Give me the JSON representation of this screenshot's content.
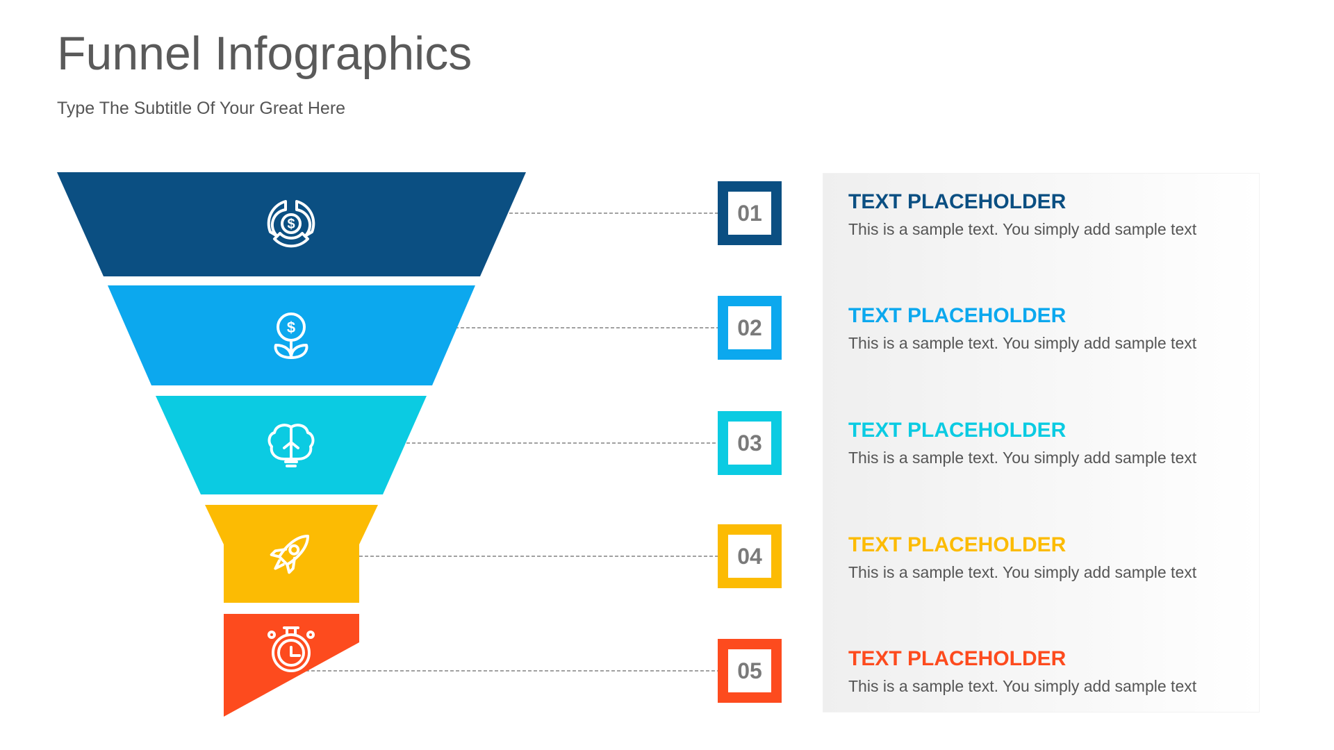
{
  "header": {
    "title": "Funnel Infographics",
    "subtitle": "Type The Subtitle Of Your Great Here"
  },
  "stages": [
    {
      "number": "01",
      "color": "#0b4f82",
      "icon": "money-cycle-icon",
      "heading": "TEXT PLACEHOLDER",
      "body": "This is a sample text. You simply add sample text"
    },
    {
      "number": "02",
      "color": "#0ca8ee",
      "icon": "money-plant-icon",
      "heading": "TEXT PLACEHOLDER",
      "body": "This is a sample text. You simply add sample text"
    },
    {
      "number": "03",
      "color": "#0bcbe2",
      "icon": "brain-bulb-icon",
      "heading": "TEXT PLACEHOLDER",
      "body": "This is a sample text. You simply add sample text"
    },
    {
      "number": "04",
      "color": "#fcbb03",
      "icon": "rocket-icon",
      "heading": "TEXT PLACEHOLDER",
      "body": "This is a sample text. You simply add sample text"
    },
    {
      "number": "05",
      "color": "#fd4b1e",
      "icon": "stopwatch-icon",
      "heading": "TEXT PLACEHOLDER",
      "body": "This is a sample text. You simply add sample text"
    }
  ]
}
